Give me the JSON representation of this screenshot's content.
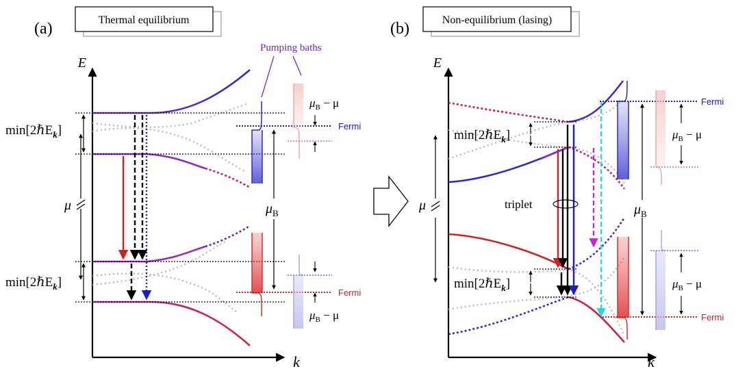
{
  "panel_a": {
    "letter": "(a)",
    "title": "Thermal equilibrium",
    "axis_y": "E",
    "axis_x": "k",
    "mu": "μ",
    "mu_B": "μ",
    "mu_B_sub": "B",
    "gap_label": "min[2ℏE",
    "gap_label_sub": "k",
    "gap_label_end": "]",
    "gap_label_lower": "min[2ℏE",
    "pumping": "Pumping baths",
    "fermi_upper": "Fermi",
    "fermi_lower": "Fermi",
    "mub_mu_upper": "μ",
    "mub_mu_upper_sub": "B",
    "mub_mu_upper_tail": " − μ",
    "mub_mu_lower": "μ",
    "mub_mu_lower_sub": "B",
    "mub_mu_lower_tail": " − μ"
  },
  "panel_b": {
    "letter": "(b)",
    "title": "Non-equilibrium (lasing)",
    "axis_y": "E",
    "axis_x": "k",
    "mu": "μ",
    "mu_B": "μ",
    "mu_B_sub": "B",
    "gap_label": "min[2ℏE",
    "gap_label_sub": "k",
    "gap_label_end": "]",
    "triplet": "triplet",
    "fermi_upper": "Fermi",
    "fermi_lower": "Fermi",
    "mub_mu_upper": "μ",
    "mub_mu_upper_sub": "B",
    "mub_mu_upper_tail": " − μ",
    "mub_mu_lower": "μ",
    "mub_mu_lower_sub": "B",
    "mub_mu_lower_tail": " − μ"
  },
  "colors": {
    "blue": "#1c1ccc",
    "red": "#d22020",
    "purple": "#7a22c9",
    "magenta": "#d020d0",
    "cyan": "#22d8e8",
    "gray": "#b8b8b8",
    "fermi_blue": "#1a1ab4",
    "fermi_red": "#cc2020",
    "pink": "#f2b0b0",
    "lightblue": "#b8b8ea"
  }
}
